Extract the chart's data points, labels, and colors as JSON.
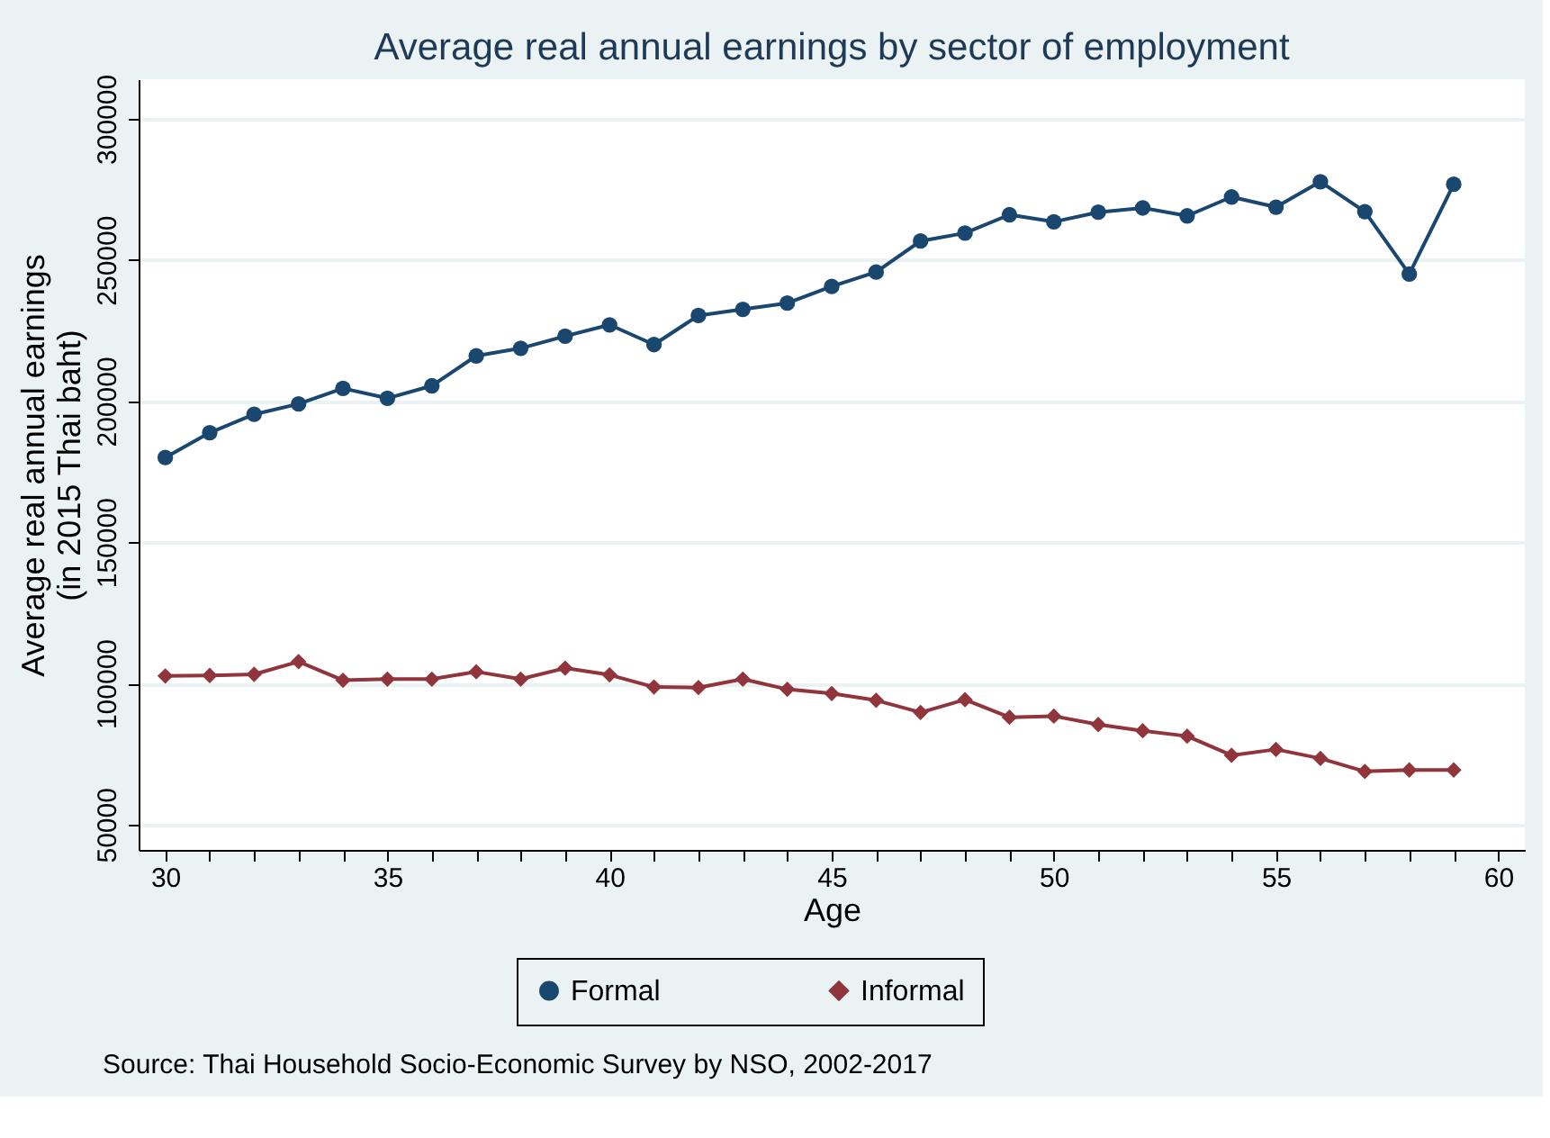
{
  "chart_data": {
    "type": "line",
    "title": "Average real annual earnings by sector of employment",
    "xlabel": "Age",
    "ylabel": "Average real annual earnings\n(in 2015 Thai baht)",
    "x": [
      30,
      31,
      32,
      33,
      34,
      35,
      36,
      37,
      38,
      39,
      40,
      41,
      42,
      43,
      44,
      45,
      46,
      47,
      48,
      49,
      50,
      51,
      52,
      53,
      54,
      55,
      56,
      57,
      58,
      59
    ],
    "series": [
      {
        "name": "Formal",
        "color": "#1a476f",
        "marker": "circle",
        "values": [
          180000,
          188800,
          195300,
          199000,
          204500,
          201000,
          205400,
          216000,
          218700,
          223000,
          227000,
          220000,
          230300,
          232500,
          234700,
          240600,
          245700,
          256700,
          259500,
          266000,
          263500,
          266900,
          268400,
          265600,
          272300,
          268700,
          277700,
          267100,
          245000,
          276800
        ]
      },
      {
        "name": "Informal",
        "color": "#90353b",
        "marker": "diamond",
        "values": [
          102600,
          102800,
          103200,
          107700,
          101100,
          101500,
          101500,
          104100,
          101500,
          105400,
          103000,
          98700,
          98500,
          101500,
          97900,
          96400,
          94000,
          89700,
          94200,
          88000,
          88400,
          85400,
          83200,
          81300,
          74500,
          76600,
          73400,
          68800,
          69300,
          69300
        ]
      }
    ],
    "xlim": [
      29.4,
      60.6
    ],
    "ylim": [
      41000,
      314000
    ],
    "xticks": [
      30,
      {
        "value": 31,
        "label": null
      },
      {
        "value": 32,
        "label": null
      },
      {
        "value": 33,
        "label": null
      },
      {
        "value": 34,
        "label": null
      },
      35,
      {
        "value": 36,
        "label": null
      },
      {
        "value": 37,
        "label": null
      },
      {
        "value": 38,
        "label": null
      },
      {
        "value": 39,
        "label": null
      },
      40,
      {
        "value": 41,
        "label": null
      },
      {
        "value": 42,
        "label": null
      },
      {
        "value": 43,
        "label": null
      },
      {
        "value": 44,
        "label": null
      },
      45,
      {
        "value": 46,
        "label": null
      },
      {
        "value": 47,
        "label": null
      },
      {
        "value": 48,
        "label": null
      },
      {
        "value": 49,
        "label": null
      },
      50,
      {
        "value": 51,
        "label": null
      },
      {
        "value": 52,
        "label": null
      },
      {
        "value": 53,
        "label": null
      },
      {
        "value": 54,
        "label": null
      },
      55,
      {
        "value": 56,
        "label": null
      },
      {
        "value": 57,
        "label": null
      },
      {
        "value": 58,
        "label": null
      },
      {
        "value": 59,
        "label": null
      },
      60
    ],
    "yticks": [
      50000,
      100000,
      150000,
      200000,
      250000,
      300000
    ],
    "grid": "y",
    "legend": "bottom",
    "line_style": "solid",
    "annotations": [
      "Source: Thai Household Socio-Economic Survey by NSO, 2002-2017"
    ]
  }
}
